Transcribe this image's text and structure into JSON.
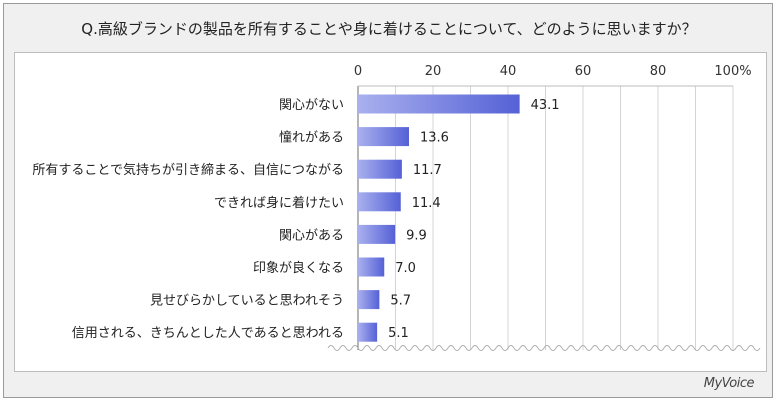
{
  "title": "Q.高級ブランドの製品を所有することや身に着けることについて、どのように思いますか？",
  "brand": "MyVoice",
  "chart_data": {
    "type": "bar",
    "orientation": "horizontal",
    "categories": [
      "関心がない",
      "憧れがある",
      "所有することで気持ちが引き締まる、自信につながる",
      "できれば身に着けたい",
      "関心がある",
      "印象が良くなる",
      "見せびらかしていると思われそう",
      "信用される、きちんとした人であると思われる"
    ],
    "values": [
      43.1,
      13.6,
      11.7,
      11.4,
      9.9,
      7.0,
      5.7,
      5.1
    ],
    "value_labels": [
      "43.1",
      "13.6",
      "11.7",
      "11.4",
      "9.9",
      "7.0",
      "5.7",
      "5.1"
    ],
    "xlim": [
      0,
      100
    ],
    "xticks": [
      "0",
      "20",
      "40",
      "60",
      "80",
      "100%"
    ],
    "grid": true,
    "bar_color": "#5561d6",
    "highlight_color": "#a9b0ee"
  }
}
